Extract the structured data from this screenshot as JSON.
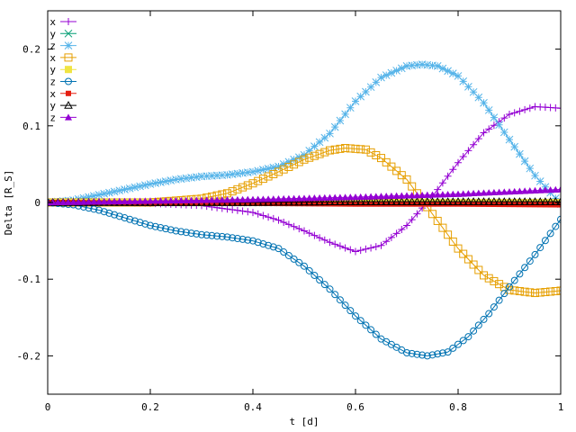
{
  "chart_data": {
    "type": "line",
    "title": "",
    "xlabel": "t [d]",
    "ylabel": "Delta [R_S]",
    "xlim": [
      0,
      1
    ],
    "ylim": [
      -0.25,
      0.25
    ],
    "xticks": [
      0,
      0.2,
      0.4,
      0.6,
      0.8,
      1
    ],
    "xtick_labels": [
      "0",
      "0.2",
      "0.4",
      "0.6",
      "0.8",
      "1"
    ],
    "yticks": [
      -0.2,
      -0.1,
      0,
      0.1,
      0.2
    ],
    "ytick_labels": [
      "-0.2",
      "-0.1",
      "0",
      "0.1",
      "0.2"
    ],
    "grid": false,
    "legend_position": "top-left",
    "series": [
      {
        "name": "x",
        "color": "#9400d3",
        "marker": "plus",
        "x": [
          0,
          0.1,
          0.2,
          0.3,
          0.4,
          0.45,
          0.5,
          0.55,
          0.6,
          0.65,
          0.7,
          0.75,
          0.8,
          0.85,
          0.9,
          0.95,
          1.0
        ],
        "y": [
          0,
          0.0,
          -0.001,
          -0.004,
          -0.013,
          -0.023,
          -0.037,
          -0.052,
          -0.064,
          -0.056,
          -0.03,
          0.008,
          0.052,
          0.091,
          0.115,
          0.125,
          0.123
        ]
      },
      {
        "name": "y",
        "color": "#009e73",
        "marker": "cross",
        "x": [
          0,
          0.2,
          0.4,
          0.6,
          0.8,
          1.0
        ],
        "y": [
          0,
          0.0,
          0.0,
          0.0,
          0.0,
          0.0
        ]
      },
      {
        "name": "z",
        "color": "#56b4e9",
        "marker": "star",
        "x": [
          0,
          0.05,
          0.1,
          0.15,
          0.2,
          0.25,
          0.3,
          0.35,
          0.4,
          0.45,
          0.5,
          0.55,
          0.6,
          0.65,
          0.7,
          0.73,
          0.76,
          0.8,
          0.85,
          0.9,
          0.95,
          1.0
        ],
        "y": [
          0,
          0.003,
          0.01,
          0.017,
          0.024,
          0.03,
          0.034,
          0.036,
          0.04,
          0.047,
          0.062,
          0.09,
          0.132,
          0.163,
          0.178,
          0.18,
          0.178,
          0.165,
          0.13,
          0.082,
          0.035,
          -0.002
        ]
      },
      {
        "name": "x",
        "color": "#e69f00",
        "marker": "square-open",
        "x": [
          0,
          0.1,
          0.2,
          0.3,
          0.35,
          0.4,
          0.45,
          0.5,
          0.55,
          0.58,
          0.62,
          0.65,
          0.7,
          0.75,
          0.8,
          0.85,
          0.9,
          0.95,
          1.0
        ],
        "y": [
          0,
          0.0,
          0.0,
          0.005,
          0.012,
          0.025,
          0.04,
          0.056,
          0.068,
          0.071,
          0.069,
          0.058,
          0.03,
          -0.015,
          -0.06,
          -0.095,
          -0.114,
          -0.118,
          -0.115
        ]
      },
      {
        "name": "y",
        "color": "#f0e442",
        "marker": "square-filled",
        "x": [
          0,
          0.2,
          0.4,
          0.6,
          0.8,
          1.0
        ],
        "y": [
          0,
          0.0,
          0.0,
          0.0,
          0.0,
          0.0
        ]
      },
      {
        "name": "z",
        "color": "#0072b2",
        "marker": "circle-open",
        "x": [
          0,
          0.05,
          0.1,
          0.15,
          0.2,
          0.25,
          0.3,
          0.35,
          0.4,
          0.45,
          0.5,
          0.55,
          0.6,
          0.65,
          0.7,
          0.74,
          0.78,
          0.82,
          0.86,
          0.9,
          0.95,
          1.0
        ],
        "y": [
          0,
          -0.003,
          -0.01,
          -0.02,
          -0.03,
          -0.037,
          -0.042,
          -0.045,
          -0.05,
          -0.06,
          -0.083,
          -0.113,
          -0.148,
          -0.178,
          -0.196,
          -0.2,
          -0.195,
          -0.175,
          -0.145,
          -0.11,
          -0.068,
          -0.022
        ]
      },
      {
        "name": "x",
        "color": "#e51e10",
        "marker": "square-filled-small",
        "x": [
          0,
          0.2,
          0.4,
          0.6,
          0.8,
          1.0
        ],
        "y": [
          0,
          -0.001,
          -0.001,
          -0.002,
          -0.002,
          -0.003
        ]
      },
      {
        "name": "y",
        "color": "#000000",
        "marker": "triangle-open",
        "x": [
          0,
          0.2,
          0.4,
          0.6,
          0.8,
          1.0
        ],
        "y": [
          0,
          0.0,
          0.0,
          0.001,
          0.001,
          0.001
        ]
      },
      {
        "name": "z",
        "color": "#9400d3",
        "marker": "triangle-filled",
        "x": [
          0,
          0.2,
          0.4,
          0.6,
          0.8,
          1.0
        ],
        "y": [
          0,
          0.002,
          0.004,
          0.007,
          0.011,
          0.017
        ]
      }
    ]
  }
}
